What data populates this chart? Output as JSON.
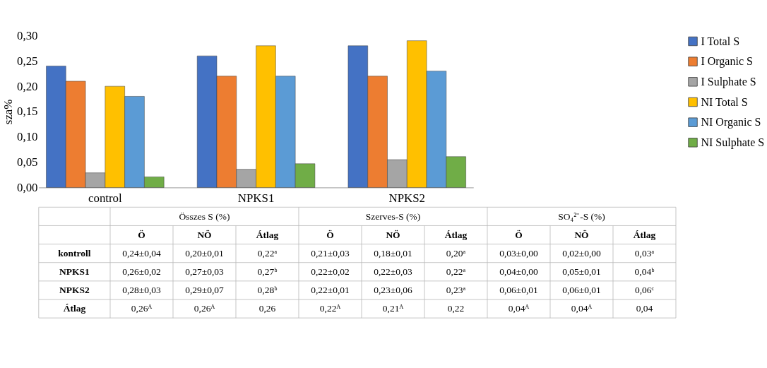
{
  "chart_data": [
    {
      "type": "bar",
      "ylabel": "sza%",
      "categories": [
        "control",
        "NPKS1",
        "NPKS2"
      ],
      "series": [
        {
          "name": "I Total S",
          "color": "#4472c4",
          "values": [
            0.24,
            0.26,
            0.28
          ]
        },
        {
          "name": "I Organic S",
          "color": "#ed7d31",
          "values": [
            0.21,
            0.22,
            0.22
          ]
        },
        {
          "name": "I Sulphate S",
          "color": "#a5a5a5",
          "values": [
            0.029,
            0.036,
            0.055
          ]
        },
        {
          "name": "NI Total S",
          "color": "#ffc000",
          "values": [
            0.2,
            0.28,
            0.29
          ]
        },
        {
          "name": "NI Organic S",
          "color": "#5b9bd5",
          "values": [
            0.18,
            0.22,
            0.23
          ]
        },
        {
          "name": "NI Sulphate S",
          "color": "#70ad47",
          "values": [
            0.021,
            0.047,
            0.061
          ]
        }
      ],
      "ylim": [
        0,
        0.3
      ],
      "yticks": [
        {
          "value": 0,
          "label": "0,00"
        },
        {
          "value": 0.05,
          "label": "0,05"
        },
        {
          "value": 0.1,
          "label": "0,10"
        },
        {
          "value": 0.15,
          "label": "0,15"
        },
        {
          "value": 0.2,
          "label": "0,20"
        },
        {
          "value": 0.25,
          "label": "0,25"
        },
        {
          "value": 0.3,
          "label": "0,30"
        }
      ],
      "legend": "right",
      "grid": false
    },
    {
      "type": "other",
      "annotations": [
        "Összes S (%)",
        "Szerves-S (%)",
        "SO₄²⁻-S (%)",
        "Ö",
        "NÖ",
        "Átlag",
        "Ö",
        "NÖ",
        "Átlag",
        "Ö",
        "NÖ",
        "Átlag",
        "kontroll",
        "0,24±0,04",
        "0,20±0,01",
        "0,22ᵃ",
        "0,21±0,03",
        "0,18±0,01",
        "0,20ᵃ",
        "0,03±0,00",
        "0,02±0,00",
        "0,03ᵃ",
        "NPKS1",
        "0,26±0,02",
        "0,27±0,03",
        "0,27ᵇ",
        "0,22±0,02",
        "0,22±0,03",
        "0,22ᵃ",
        "0,04±0,00",
        "0,05±0,01",
        "0,04ᵇ",
        "NPKS2",
        "0,28±0,03",
        "0,29±0,07",
        "0,28ᵇ",
        "0,22±0,01",
        "0,23±0,06",
        "0,23ᵃ",
        "0,06±0,01",
        "0,06±0,01",
        "0,06ᶜ",
        "Átlag",
        "0,26ᴬ",
        "0,26ᴬ",
        "0,26",
        "0,22ᴬ",
        "0,21ᴬ",
        "0,22",
        "0,04ᴬ",
        "0,04ᴬ",
        "0,04"
      ]
    }
  ]
}
